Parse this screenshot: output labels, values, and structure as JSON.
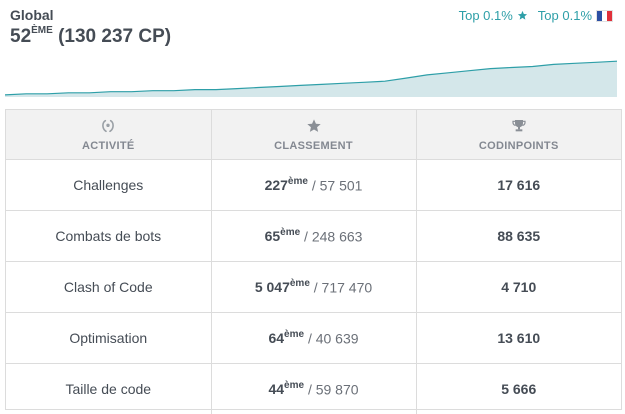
{
  "header": {
    "title": "Global",
    "rank": "52",
    "rank_suffix": "ÈME",
    "points": "(130 237 CP)",
    "top_global": "Top 0.1%",
    "top_country": "Top 0.1%",
    "icons": {
      "global": "star-icon",
      "country": "france-flag-icon"
    },
    "colors": {
      "accent": "#2e9fa8",
      "chart_fill": "#d4e7ea",
      "chart_line": "#2e9fa8"
    }
  },
  "chart_data": {
    "type": "area",
    "x": [
      0,
      1,
      2,
      3,
      4,
      5,
      6,
      7,
      8,
      9,
      10,
      11,
      12,
      13,
      14,
      15,
      16,
      17,
      18,
      19,
      20,
      21,
      22,
      23,
      24,
      25,
      26,
      27,
      28,
      29
    ],
    "values": [
      2,
      3,
      3,
      4,
      4,
      5,
      5,
      6,
      6,
      7,
      7,
      8,
      9,
      10,
      11,
      12,
      13,
      14,
      15,
      18,
      21,
      23,
      25,
      27,
      28,
      29,
      31,
      32,
      33,
      34
    ],
    "ylim": [
      0,
      38
    ],
    "title": "",
    "xlabel": "",
    "ylabel": ""
  },
  "table": {
    "headers": [
      {
        "label": "ACTIVITÉ",
        "icon": "laurel-icon"
      },
      {
        "label": "CLASSEMENT",
        "icon": "star-icon"
      },
      {
        "label": "CODINPOINTS",
        "icon": "trophy-icon"
      }
    ],
    "rows": [
      {
        "activity": "Challenges",
        "rank": "227",
        "suffix": "ème",
        "total": "/ 57 501",
        "points": "17 616"
      },
      {
        "activity": "Combats de bots",
        "rank": "65",
        "suffix": "ème",
        "total": "/ 248 663",
        "points": "88 635"
      },
      {
        "activity": "Clash of Code",
        "rank": "5 047",
        "suffix": "ème",
        "total": "/ 717 470",
        "points": "4 710"
      },
      {
        "activity": "Optimisation",
        "rank": "64",
        "suffix": "ème",
        "total": "/ 40 639",
        "points": "13 610"
      },
      {
        "activity": "Taille de code",
        "rank": "44",
        "suffix": "ème",
        "total": "/ 59 870",
        "points": "5 666"
      }
    ]
  }
}
